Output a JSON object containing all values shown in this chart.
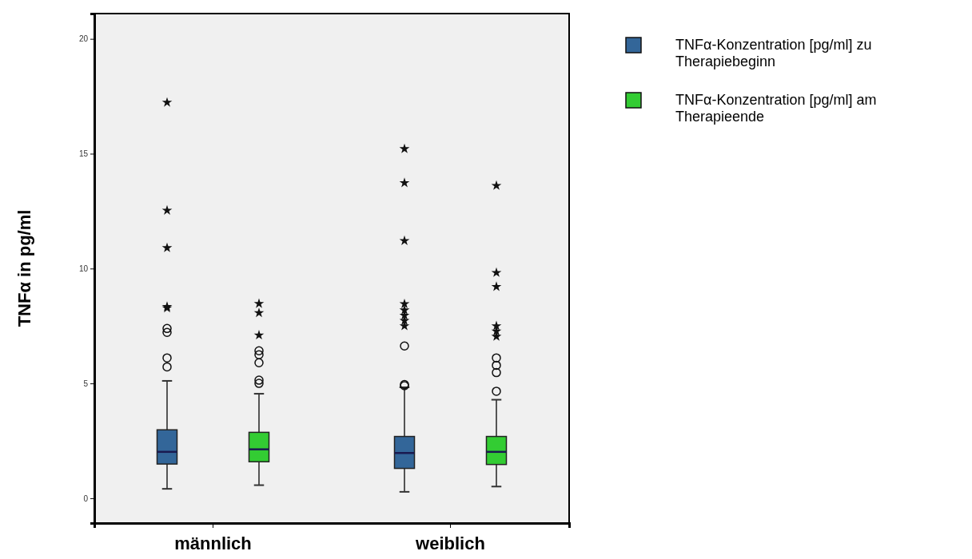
{
  "chart_data": {
    "type": "box",
    "ylabel": "TNFα in pg/ml",
    "categories": [
      "männlich",
      "weiblich"
    ],
    "ylim": [
      -1.08,
      21.1
    ],
    "yticks": [
      0,
      5,
      10,
      15,
      20
    ],
    "legend": "top right",
    "series": [
      {
        "name": "TNFα-Konzentration [pg/ml] zu Therapiebeginn",
        "color": "#336699",
        "boxes": [
          {
            "low": 0.41,
            "q1": 1.49,
            "median": 2.02,
            "q3": 2.98,
            "high": 5.11,
            "outliers": [
              5.72,
              6.11,
              7.22,
              7.39,
              8.28,
              8.34,
              10.9,
              12.53,
              17.23
            ]
          },
          {
            "low": 0.28,
            "q1": 1.3,
            "median": 1.97,
            "q3": 2.69,
            "high": 4.83,
            "outliers": [
              4.9,
              4.95,
              6.63,
              7.5,
              7.73,
              7.96,
              8.19,
              8.46,
              11.21,
              13.73,
              15.21
            ]
          }
        ]
      },
      {
        "name": "TNFα-Konzentration [pg/ml] am Therapieende",
        "color": "#33cc33",
        "boxes": [
          {
            "low": 0.57,
            "q1": 1.59,
            "median": 2.13,
            "q3": 2.87,
            "high": 4.55,
            "outliers": [
              5.0,
              5.14,
              5.9,
              6.25,
              6.42,
              7.1,
              8.07,
              8.47
            ]
          },
          {
            "low": 0.51,
            "q1": 1.47,
            "median": 2.02,
            "q3": 2.69,
            "high": 4.29,
            "outliers": [
              4.66,
              5.47,
              5.79,
              6.11,
              7.04,
              7.27,
              7.5,
              9.21,
              9.82,
              13.61
            ]
          }
        ]
      }
    ]
  }
}
